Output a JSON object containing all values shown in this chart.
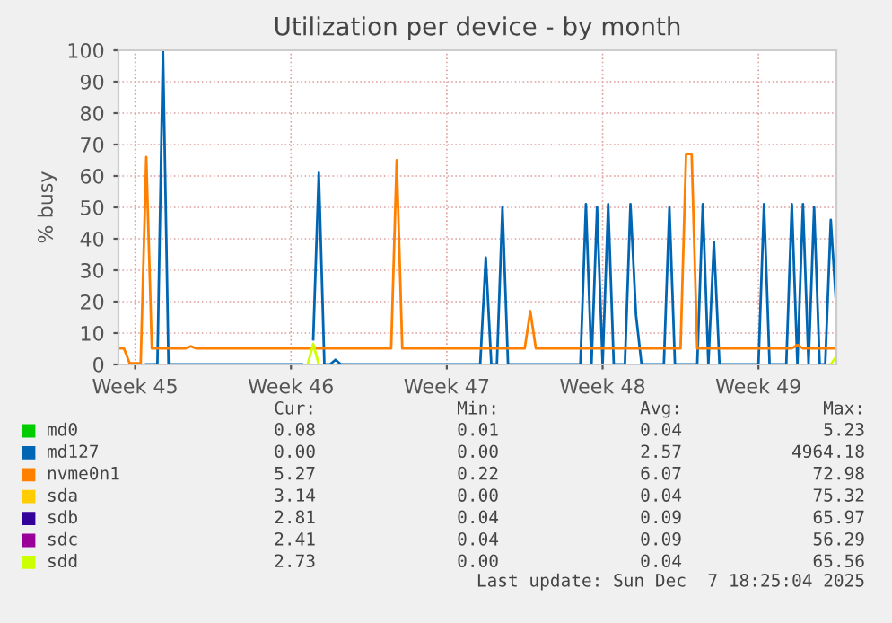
{
  "chart_data": {
    "type": "line",
    "title": "Utilization per device - by month",
    "ylabel": "% busy",
    "categories": [
      null,
      null,
      null,
      "Week 45",
      null,
      null,
      null,
      null,
      null,
      null,
      null,
      null,
      null,
      null,
      null,
      null,
      null,
      null,
      null,
      null,
      null,
      null,
      null,
      null,
      null,
      null,
      null,
      null,
      null,
      null,
      null,
      "Week 46",
      null,
      null,
      null,
      null,
      null,
      null,
      null,
      null,
      null,
      null,
      null,
      null,
      null,
      null,
      null,
      null,
      null,
      null,
      null,
      null,
      null,
      null,
      null,
      null,
      null,
      null,
      null,
      "Week 47",
      null,
      null,
      null,
      null,
      null,
      null,
      null,
      null,
      null,
      null,
      null,
      null,
      null,
      null,
      null,
      null,
      null,
      null,
      null,
      null,
      null,
      null,
      null,
      null,
      null,
      null,
      null,
      "Week 48",
      null,
      null,
      null,
      null,
      null,
      null,
      null,
      null,
      null,
      null,
      null,
      null,
      null,
      null,
      null,
      null,
      null,
      null,
      null,
      null,
      null,
      null,
      null,
      null,
      null,
      null,
      null,
      "Week 49",
      null,
      null,
      null,
      null,
      null,
      null,
      null,
      null,
      null,
      null,
      null,
      null,
      null,
      null
    ],
    "ylim": [
      0,
      100
    ],
    "yticks": [
      0,
      10,
      20,
      30,
      40,
      50,
      60,
      70,
      80,
      90,
      100
    ],
    "grid": true,
    "legend": "bottom",
    "line_style": "solid",
    "series": [
      {
        "name": "md0",
        "color": "#00cc00",
        "values": [
          null,
          null,
          null,
          null,
          null,
          null,
          null,
          null,
          null,
          null,
          null,
          null,
          null,
          null,
          null,
          null,
          null,
          null,
          null,
          null,
          null,
          null,
          null,
          null,
          null,
          null,
          null,
          null,
          null,
          null,
          null,
          null,
          null,
          null,
          null,
          null,
          null,
          null,
          null,
          null,
          null,
          null,
          null,
          null,
          null,
          null,
          null,
          null,
          null,
          null,
          null,
          null,
          null,
          null,
          null,
          null,
          null,
          null,
          null,
          null,
          null,
          null,
          null,
          null,
          null,
          null,
          null,
          null,
          null,
          null,
          null,
          null,
          null,
          null,
          null,
          null,
          null,
          null,
          null,
          null,
          null,
          null,
          null,
          null,
          null,
          null,
          null,
          null,
          null,
          null,
          null,
          null,
          null,
          null,
          null,
          null,
          null,
          null,
          null,
          null,
          null,
          null,
          null,
          null,
          null,
          null,
          null,
          null,
          null,
          null,
          null,
          null,
          null,
          null,
          null,
          null,
          null,
          null,
          null,
          null,
          null,
          null,
          null,
          null,
          null,
          null,
          null,
          null,
          null,
          null
        ]
      },
      {
        "name": "md127",
        "color": "#0066b3",
        "values": [
          null,
          null,
          null,
          null,
          null,
          0,
          0,
          0,
          100,
          0,
          0,
          0,
          0,
          0,
          0,
          0,
          0,
          0,
          0,
          0,
          0,
          0,
          0,
          0,
          0,
          0,
          0,
          0,
          0,
          0,
          0,
          0,
          0,
          0,
          null,
          8,
          61,
          0,
          0,
          1.5,
          0,
          0,
          0,
          0,
          0,
          0,
          0,
          0,
          0,
          0,
          0,
          0,
          0,
          0,
          0,
          0,
          0,
          0,
          0,
          0,
          0,
          0,
          0,
          0,
          0,
          0,
          34,
          0,
          0,
          50,
          0,
          0,
          0,
          0,
          0,
          0,
          0,
          0,
          0,
          0,
          0,
          0,
          0,
          0,
          51,
          0,
          50,
          0,
          51,
          0,
          0,
          0,
          51,
          15.6,
          0,
          0,
          0,
          0,
          0,
          50,
          0,
          0,
          0,
          0,
          0,
          51,
          0,
          39,
          0,
          0,
          0,
          0,
          0,
          0,
          0,
          0,
          51,
          0,
          0,
          0,
          0,
          51,
          0,
          51,
          0,
          50,
          0,
          0,
          46,
          18
        ]
      },
      {
        "name": "nvme0n1",
        "color": "#ff8000",
        "values": [
          5.1,
          5.1,
          0.4,
          0.4,
          0.4,
          66,
          5.1,
          5.1,
          5.1,
          5.1,
          5.1,
          5.1,
          5.1,
          5.8,
          5.1,
          5.1,
          5.1,
          5.1,
          5.1,
          5.1,
          5.1,
          5.1,
          5.1,
          5.1,
          5.1,
          5.1,
          5.1,
          5.1,
          5.1,
          5.1,
          5.1,
          5.1,
          5.1,
          5.1,
          5.1,
          5.1,
          5.1,
          5.1,
          5.1,
          5.1,
          5.1,
          5.1,
          5.1,
          5.1,
          5.1,
          5.1,
          5.1,
          5.1,
          5.1,
          5.1,
          65,
          5.1,
          5.1,
          5.1,
          5.1,
          5.1,
          5.1,
          5.1,
          5.1,
          5.1,
          5.1,
          5.1,
          5.1,
          5.1,
          5.1,
          5.1,
          5.1,
          5.1,
          5.1,
          5.1,
          5.1,
          5.1,
          5.1,
          5.1,
          17,
          5.1,
          5.1,
          5.1,
          5.1,
          5.1,
          5.1,
          5.1,
          5.1,
          5.1,
          5.1,
          5.1,
          5.1,
          5.1,
          5.1,
          5.1,
          5.1,
          5.1,
          5.1,
          5.1,
          5.1,
          5.1,
          5.1,
          5.1,
          5.1,
          5.1,
          5.1,
          5.1,
          67,
          67,
          5.1,
          5.1,
          5.1,
          5.1,
          5.1,
          5.1,
          5.1,
          5.1,
          5.1,
          5.1,
          5.1,
          5.1,
          5.1,
          5.1,
          5.1,
          5.1,
          5.1,
          5.1,
          6.2,
          5.1,
          5.1,
          5.1,
          5.1,
          5.1,
          5.1,
          5.1
        ]
      },
      {
        "name": "sda",
        "color": "#ffcc00",
        "values": [
          null,
          null,
          null,
          null,
          null,
          null,
          null,
          null,
          null,
          null,
          null,
          null,
          null,
          null,
          null,
          null,
          null,
          null,
          null,
          null,
          null,
          null,
          null,
          null,
          null,
          null,
          null,
          null,
          null,
          null,
          null,
          null,
          null,
          null,
          null,
          null,
          null,
          null,
          null,
          null,
          null,
          null,
          null,
          null,
          null,
          null,
          null,
          null,
          null,
          null,
          null,
          null,
          null,
          null,
          null,
          null,
          null,
          null,
          null,
          null,
          null,
          null,
          null,
          null,
          null,
          null,
          null,
          null,
          null,
          null,
          null,
          null,
          null,
          null,
          null,
          null,
          null,
          null,
          null,
          null,
          null,
          null,
          null,
          null,
          null,
          null,
          null,
          null,
          null,
          null,
          null,
          null,
          null,
          null,
          null,
          null,
          null,
          null,
          null,
          null,
          null,
          null,
          null,
          null,
          null,
          null,
          null,
          null,
          null,
          null,
          null,
          null,
          null,
          null,
          null,
          null,
          null,
          null,
          null,
          null,
          null,
          null,
          null,
          null,
          null,
          null,
          null,
          null,
          null,
          null
        ]
      },
      {
        "name": "sdb",
        "color": "#330099",
        "values": [
          null,
          null,
          null,
          null,
          null,
          null,
          null,
          null,
          null,
          null,
          null,
          null,
          null,
          null,
          null,
          null,
          null,
          null,
          null,
          null,
          null,
          null,
          null,
          null,
          null,
          null,
          null,
          null,
          null,
          null,
          null,
          null,
          null,
          null,
          null,
          null,
          null,
          null,
          null,
          null,
          null,
          null,
          null,
          null,
          null,
          null,
          null,
          null,
          null,
          null,
          null,
          null,
          null,
          null,
          null,
          null,
          null,
          null,
          null,
          null,
          null,
          null,
          null,
          null,
          null,
          null,
          null,
          null,
          null,
          null,
          null,
          null,
          null,
          null,
          null,
          null,
          null,
          null,
          null,
          null,
          null,
          null,
          null,
          null,
          null,
          null,
          null,
          null,
          null,
          null,
          null,
          null,
          null,
          null,
          null,
          null,
          null,
          null,
          null,
          null,
          null,
          null,
          null,
          null,
          null,
          null,
          null,
          null,
          null,
          null,
          null,
          null,
          null,
          null,
          null,
          null,
          null,
          null,
          null,
          null,
          null,
          null,
          null,
          null,
          null,
          null,
          null,
          null,
          null,
          null
        ]
      },
      {
        "name": "sdc",
        "color": "#990099",
        "values": [
          null,
          null,
          null,
          null,
          null,
          null,
          null,
          null,
          null,
          null,
          null,
          null,
          null,
          null,
          null,
          null,
          null,
          null,
          null,
          null,
          null,
          null,
          null,
          null,
          null,
          null,
          null,
          null,
          null,
          null,
          null,
          null,
          null,
          null,
          null,
          null,
          null,
          null,
          null,
          null,
          null,
          null,
          null,
          null,
          null,
          null,
          null,
          null,
          null,
          null,
          null,
          null,
          null,
          null,
          null,
          null,
          null,
          null,
          null,
          null,
          null,
          null,
          null,
          null,
          null,
          null,
          null,
          null,
          null,
          null,
          null,
          null,
          null,
          null,
          null,
          null,
          null,
          null,
          null,
          null,
          null,
          null,
          null,
          null,
          null,
          null,
          null,
          null,
          null,
          null,
          null,
          null,
          null,
          null,
          null,
          null,
          null,
          null,
          null,
          null,
          null,
          null,
          null,
          null,
          null,
          null,
          null,
          null,
          null,
          null,
          null,
          null,
          null,
          null,
          null,
          null,
          null,
          null,
          null,
          null,
          null,
          null,
          null,
          null,
          null,
          null,
          null,
          null,
          null,
          null
        ]
      },
      {
        "name": "sdd",
        "color": "#ccff00",
        "values": [
          null,
          null,
          null,
          null,
          null,
          null,
          null,
          null,
          null,
          null,
          null,
          null,
          null,
          null,
          null,
          null,
          null,
          null,
          null,
          null,
          null,
          null,
          null,
          null,
          null,
          null,
          null,
          null,
          null,
          null,
          null,
          null,
          null,
          null,
          0,
          6.5,
          0,
          null,
          null,
          null,
          null,
          null,
          null,
          null,
          null,
          null,
          null,
          null,
          null,
          null,
          null,
          null,
          null,
          null,
          null,
          null,
          null,
          null,
          null,
          null,
          null,
          null,
          null,
          null,
          null,
          null,
          null,
          null,
          null,
          null,
          null,
          null,
          null,
          null,
          null,
          null,
          null,
          null,
          null,
          null,
          null,
          null,
          null,
          null,
          null,
          null,
          null,
          null,
          null,
          null,
          null,
          null,
          null,
          null,
          null,
          null,
          null,
          null,
          null,
          null,
          null,
          null,
          null,
          null,
          null,
          null,
          null,
          null,
          null,
          null,
          null,
          null,
          null,
          null,
          null,
          null,
          null,
          null,
          null,
          null,
          null,
          null,
          null,
          null,
          null,
          null,
          null,
          null,
          0,
          2.7
        ]
      }
    ],
    "annotations": [
      "Cur:",
      "Min:",
      "Avg:",
      "Max:",
      "0.08",
      "0.01",
      "0.04",
      "5.23",
      "0.00",
      "0.00",
      "2.57",
      "4964.18",
      "5.27",
      "0.22",
      "6.07",
      "72.98",
      "3.14",
      "0.00",
      "0.04",
      "75.32",
      "2.81",
      "0.04",
      "0.09",
      "65.97",
      "2.41",
      "0.04",
      "0.09",
      "56.29",
      "2.73",
      "0.00",
      "0.04",
      "65.56",
      "Last update: Sun Dec  7 18:25:04 2025"
    ]
  }
}
